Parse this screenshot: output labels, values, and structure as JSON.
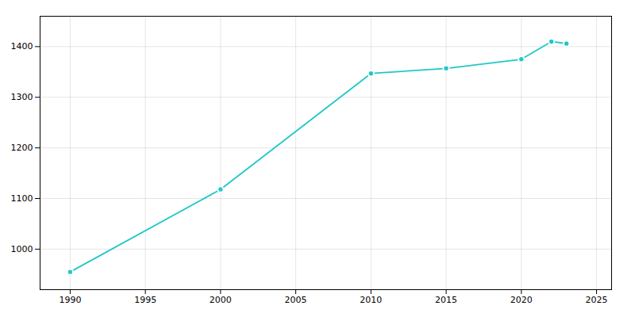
{
  "chart_data": {
    "type": "line",
    "x": [
      1990,
      2000,
      2010,
      2015,
      2020,
      2022,
      2023
    ],
    "values": [
      955,
      1118,
      1347,
      1357,
      1375,
      1410,
      1406
    ],
    "color": "#20C8C8",
    "marker": "circle",
    "xlim": [
      1988,
      2026
    ],
    "ylim": [
      920,
      1460
    ],
    "xticks": [
      1990,
      1995,
      2000,
      2005,
      2010,
      2015,
      2020,
      2025
    ],
    "yticks": [
      1000,
      1100,
      1200,
      1300,
      1400
    ],
    "grid": true
  }
}
